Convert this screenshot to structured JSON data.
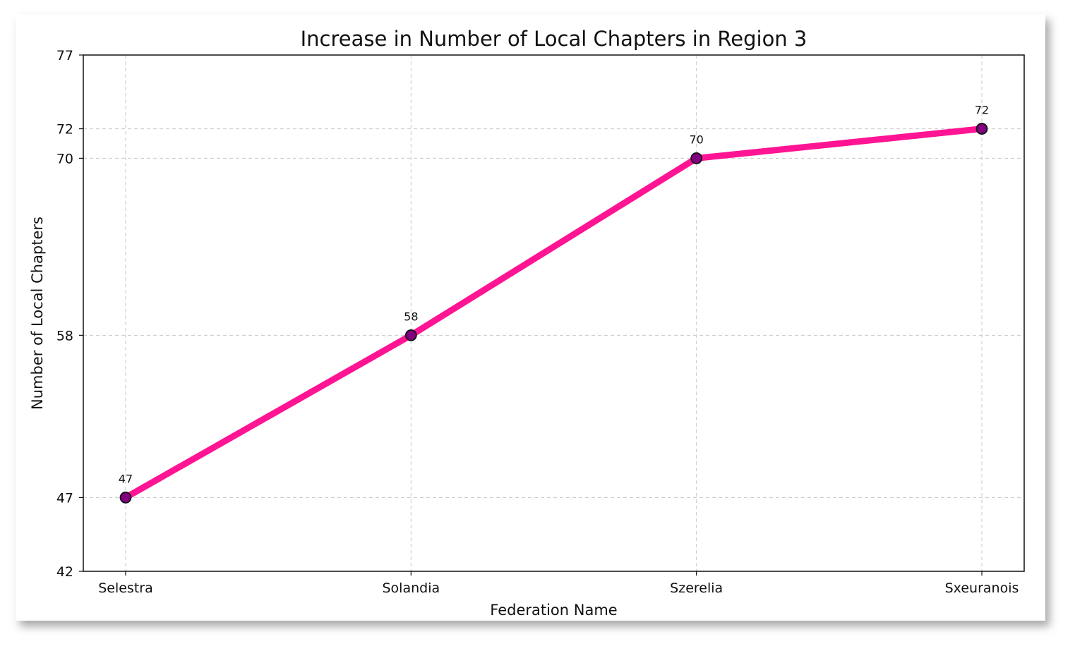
{
  "chart_data": {
    "type": "line",
    "title": "Increase in Number of Local Chapters in Region 3",
    "xlabel": "Federation Name",
    "ylabel": "Number of Local Chapters",
    "categories": [
      "Selestra",
      "Solandia",
      "Szerelia",
      "Sxeuranois"
    ],
    "series": [
      {
        "values": [
          47,
          58,
          70,
          72
        ],
        "line_color": "#ff1493",
        "marker_color": "#800080",
        "marker_edge_color": "#111111"
      }
    ],
    "yticks": [
      42,
      47,
      58,
      70,
      72,
      77
    ],
    "ylim": [
      42,
      77
    ],
    "grid": true,
    "data_labels": true
  }
}
